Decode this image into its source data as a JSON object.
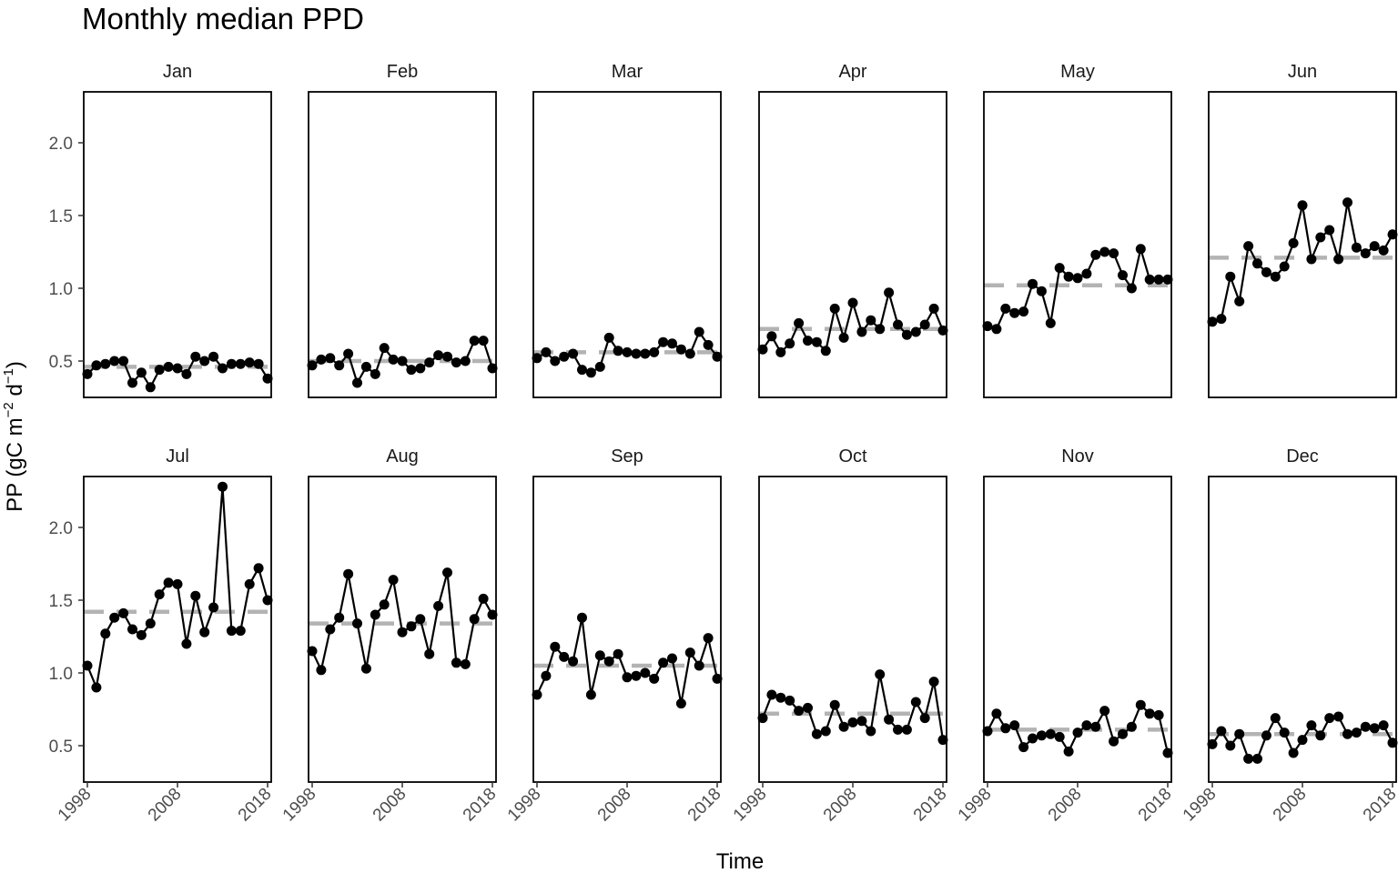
{
  "chart_data": {
    "type": "line",
    "title": "Monthly median PPD",
    "xlabel": "Time",
    "ylabel": "PP (gC m⁻² d⁻¹)",
    "ylabel_parts": {
      "main": "PP (gC m",
      "exp1": "−2",
      "mid": " d",
      "exp2": "−1",
      "end": ")"
    },
    "x": [
      1998,
      1999,
      2000,
      2001,
      2002,
      2003,
      2004,
      2005,
      2006,
      2007,
      2008,
      2009,
      2010,
      2011,
      2012,
      2013,
      2014,
      2015,
      2016,
      2017,
      2018
    ],
    "xlim": [
      1998,
      2018
    ],
    "ylim": [
      0.25,
      2.35
    ],
    "x_ticks": [
      1998,
      2008,
      2018
    ],
    "y_ticks": [
      0.5,
      1.0,
      1.5,
      2.0
    ],
    "y_tick_labels": [
      "0.5",
      "1.0",
      "1.5",
      "2.0"
    ],
    "grid": false,
    "series_color": "#000000",
    "median_color": "#b3b3b3",
    "panels": [
      {
        "name": "Jan",
        "median": 0.46,
        "values": [
          0.41,
          0.47,
          0.48,
          0.5,
          0.5,
          0.35,
          0.42,
          0.32,
          0.44,
          0.46,
          0.45,
          0.41,
          0.53,
          0.5,
          0.53,
          0.45,
          0.48,
          0.48,
          0.49,
          0.48,
          0.38
        ]
      },
      {
        "name": "Feb",
        "median": 0.5,
        "values": [
          0.47,
          0.51,
          0.52,
          0.47,
          0.55,
          0.35,
          0.46,
          0.41,
          0.59,
          0.51,
          0.5,
          0.44,
          0.45,
          0.49,
          0.54,
          0.53,
          0.49,
          0.5,
          0.64,
          0.64,
          0.45
        ]
      },
      {
        "name": "Mar",
        "median": 0.56,
        "values": [
          0.52,
          0.56,
          0.5,
          0.53,
          0.55,
          0.44,
          0.42,
          0.46,
          0.66,
          0.57,
          0.56,
          0.55,
          0.55,
          0.56,
          0.63,
          0.62,
          0.58,
          0.55,
          0.7,
          0.61,
          0.53
        ]
      },
      {
        "name": "Apr",
        "median": 0.72,
        "values": [
          0.58,
          0.67,
          0.56,
          0.62,
          0.76,
          0.64,
          0.63,
          0.57,
          0.86,
          0.66,
          0.9,
          0.7,
          0.78,
          0.72,
          0.97,
          0.75,
          0.68,
          0.7,
          0.75,
          0.86,
          0.71
        ]
      },
      {
        "name": "May",
        "median": 1.02,
        "values": [
          0.74,
          0.72,
          0.86,
          0.83,
          0.84,
          1.03,
          0.98,
          0.76,
          1.14,
          1.08,
          1.07,
          1.1,
          1.23,
          1.25,
          1.24,
          1.09,
          1.0,
          1.27,
          1.06,
          1.06,
          1.06
        ]
      },
      {
        "name": "Jun",
        "median": 1.21,
        "values": [
          0.77,
          0.79,
          1.08,
          0.91,
          1.29,
          1.17,
          1.11,
          1.08,
          1.15,
          1.31,
          1.57,
          1.2,
          1.35,
          1.4,
          1.2,
          1.59,
          1.28,
          1.24,
          1.29,
          1.26,
          1.37
        ]
      },
      {
        "name": "Jul",
        "median": 1.42,
        "values": [
          1.05,
          0.9,
          1.27,
          1.38,
          1.41,
          1.3,
          1.26,
          1.34,
          1.54,
          1.62,
          1.61,
          1.2,
          1.53,
          1.28,
          1.45,
          2.28,
          1.29,
          1.29,
          1.61,
          1.72,
          1.5
        ]
      },
      {
        "name": "Aug",
        "median": 1.34,
        "values": [
          1.15,
          1.02,
          1.3,
          1.38,
          1.68,
          1.34,
          1.03,
          1.4,
          1.47,
          1.64,
          1.28,
          1.32,
          1.37,
          1.13,
          1.46,
          1.69,
          1.07,
          1.06,
          1.37,
          1.51,
          1.4
        ]
      },
      {
        "name": "Sep",
        "median": 1.05,
        "values": [
          0.85,
          0.98,
          1.18,
          1.11,
          1.08,
          1.38,
          0.85,
          1.12,
          1.08,
          1.13,
          0.97,
          0.98,
          1.0,
          0.96,
          1.07,
          1.1,
          0.79,
          1.14,
          1.05,
          1.24,
          0.96
        ]
      },
      {
        "name": "Oct",
        "median": 0.72,
        "values": [
          0.69,
          0.85,
          0.83,
          0.81,
          0.74,
          0.76,
          0.58,
          0.6,
          0.78,
          0.63,
          0.66,
          0.67,
          0.6,
          0.99,
          0.68,
          0.61,
          0.61,
          0.8,
          0.69,
          0.94,
          0.54
        ]
      },
      {
        "name": "Nov",
        "median": 0.61,
        "values": [
          0.6,
          0.72,
          0.62,
          0.64,
          0.49,
          0.55,
          0.57,
          0.58,
          0.56,
          0.46,
          0.59,
          0.64,
          0.63,
          0.74,
          0.53,
          0.58,
          0.63,
          0.78,
          0.72,
          0.71,
          0.45
        ]
      },
      {
        "name": "Dec",
        "median": 0.58,
        "values": [
          0.51,
          0.6,
          0.5,
          0.58,
          0.41,
          0.41,
          0.57,
          0.69,
          0.59,
          0.45,
          0.54,
          0.64,
          0.57,
          0.69,
          0.7,
          0.58,
          0.59,
          0.63,
          0.62,
          0.64,
          0.52
        ]
      }
    ]
  }
}
